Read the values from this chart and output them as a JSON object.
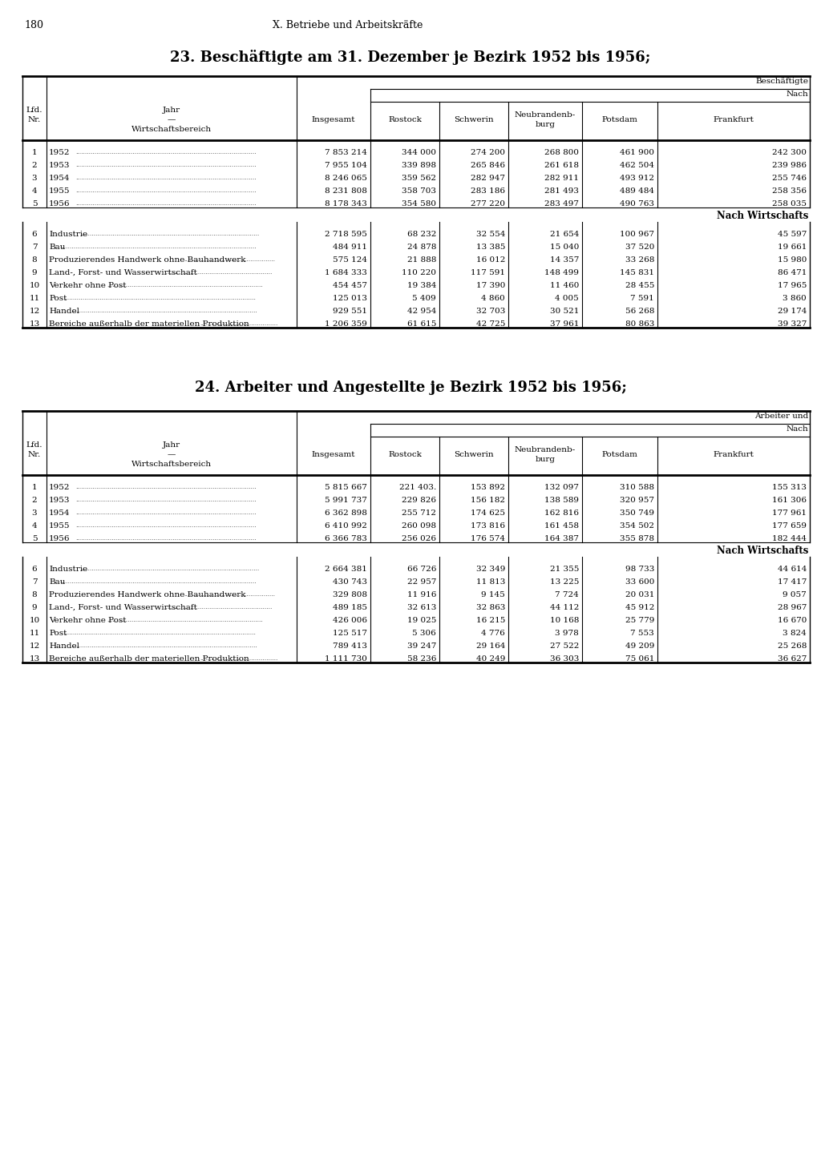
{
  "page_number": "180",
  "header": "X. Betriebe und Arbeitskäfte",
  "background_color": "#ffffff",
  "text_color": "#000000",
  "table1": {
    "title": "23. Beschäftigte am 31. Dezember je Bezirk 1952 bis 1956;",
    "col_header_right": "Beschäftigte",
    "col_header_nach": "Nach",
    "col_header_nachwirts": "Nach Wirtschafts",
    "rows_top": [
      {
        "nr": "1",
        "jahr": "1952",
        "insgesamt": "7 853 214",
        "rostock": "344 000",
        "schwerin": "274 200",
        "neubrand": "268 800",
        "potsdam": "461 900",
        "frankfurt": "242 300"
      },
      {
        "nr": "2",
        "jahr": "1953",
        "insgesamt": "7 955 104",
        "rostock": "339 898",
        "schwerin": "265 846",
        "neubrand": "261 618",
        "potsdam": "462 504",
        "frankfurt": "239 986"
      },
      {
        "nr": "3",
        "jahr": "1954",
        "insgesamt": "8 246 065",
        "rostock": "359 562",
        "schwerin": "282 947",
        "neubrand": "282 911",
        "potsdam": "493 912",
        "frankfurt": "255 746"
      },
      {
        "nr": "4",
        "jahr": "1955",
        "insgesamt": "8 231 808",
        "rostock": "358 703",
        "schwerin": "283 186",
        "neubrand": "281 493",
        "potsdam": "489 484",
        "frankfurt": "258 356"
      },
      {
        "nr": "5",
        "jahr": "1956",
        "insgesamt": "8 178 343",
        "rostock": "354 580",
        "schwerin": "277 220",
        "neubrand": "283 497",
        "potsdam": "490 763",
        "frankfurt": "258 035"
      }
    ],
    "rows_bottom": [
      {
        "nr": "6",
        "label": "Industrie",
        "insgesamt": "2 718 595",
        "rostock": "68 232",
        "schwerin": "32 554",
        "neubrand": "21 654",
        "potsdam": "100 967",
        "frankfurt": "45 597"
      },
      {
        "nr": "7",
        "label": "Bau",
        "insgesamt": "484 911",
        "rostock": "24 878",
        "schwerin": "13 385",
        "neubrand": "15 040",
        "potsdam": "37 520",
        "frankfurt": "19 661"
      },
      {
        "nr": "8",
        "label": "Produzierendes Handwerk ohne Bauhandwerk",
        "insgesamt": "575 124",
        "rostock": "21 888",
        "schwerin": "16 012",
        "neubrand": "14 357",
        "potsdam": "33 268",
        "frankfurt": "15 980"
      },
      {
        "nr": "9",
        "label": "Land-, Forst- und Wasserwirtschaft",
        "insgesamt": "1 684 333",
        "rostock": "110 220",
        "schwerin": "117 591",
        "neubrand": "148 499",
        "potsdam": "145 831",
        "frankfurt": "86 471"
      },
      {
        "nr": "10",
        "label": "Verkehr ohne Post",
        "insgesamt": "454 457",
        "rostock": "19 384",
        "schwerin": "17 390",
        "neubrand": "11 460",
        "potsdam": "28 455",
        "frankfurt": "17 965"
      },
      {
        "nr": "11",
        "label": "Post",
        "insgesamt": "125 013",
        "rostock": "5 409",
        "schwerin": "4 860",
        "neubrand": "4 005",
        "potsdam": "7 591",
        "frankfurt": "3 860"
      },
      {
        "nr": "12",
        "label": "Handel",
        "insgesamt": "929 551",
        "rostock": "42 954",
        "schwerin": "32 703",
        "neubrand": "30 521",
        "potsdam": "56 268",
        "frankfurt": "29 174"
      },
      {
        "nr": "13",
        "label": "Bereiche außerhalb der materiellen Produktion",
        "insgesamt": "1 206 359",
        "rostock": "61 615",
        "schwerin": "42 725",
        "neubrand": "37 961",
        "potsdam": "80 863",
        "frankfurt": "39 327"
      }
    ]
  },
  "table2": {
    "title": "24. Arbeiter und Angestellte je Bezirk 1952 bis 1956;",
    "col_header_right": "Arbeiter und",
    "col_header_nach": "Nach",
    "col_header_nachwirts": "Nach Wirtschafts",
    "rows_top": [
      {
        "nr": "1",
        "jahr": "1952",
        "insgesamt": "5 815 667",
        "rostock": "221 403.",
        "schwerin": "153 892",
        "neubrand": "132 097",
        "potsdam": "310 588",
        "frankfurt": "155 313"
      },
      {
        "nr": "2",
        "jahr": "1953",
        "insgesamt": "5 991 737",
        "rostock": "229 826",
        "schwerin": "156 182",
        "neubrand": "138 589",
        "potsdam": "320 957",
        "frankfurt": "161 306"
      },
      {
        "nr": "3",
        "jahr": "1954",
        "insgesamt": "6 362 898",
        "rostock": "255 712",
        "schwerin": "174 625",
        "neubrand": "162 816",
        "potsdam": "350 749",
        "frankfurt": "177 961"
      },
      {
        "nr": "4",
        "jahr": "1955",
        "insgesamt": "6 410 992",
        "rostock": "260 098",
        "schwerin": "173 816",
        "neubrand": "161 458",
        "potsdam": "354 502",
        "frankfurt": "177 659"
      },
      {
        "nr": "5",
        "jahr": "1956",
        "insgesamt": "6 366 783",
        "rostock": "256 026",
        "schwerin": "176 574",
        "neubrand": "164 387",
        "potsdam": "355 878",
        "frankfurt": "182 444"
      }
    ],
    "rows_bottom": [
      {
        "nr": "6",
        "label": "Industrie",
        "insgesamt": "2 664 381",
        "rostock": "66 726",
        "schwerin": "32 349",
        "neubrand": "21 355",
        "potsdam": "98 733",
        "frankfurt": "44 614"
      },
      {
        "nr": "7",
        "label": "Bau",
        "insgesamt": "430 743",
        "rostock": "22 957",
        "schwerin": "11 813",
        "neubrand": "13 225",
        "potsdam": "33 600",
        "frankfurt": "17 417"
      },
      {
        "nr": "8",
        "label": "Produzierendes Handwerk ohne Bauhandwerk",
        "insgesamt": "329 808",
        "rostock": "11 916",
        "schwerin": "9 145",
        "neubrand": "7 724",
        "potsdam": "20 031",
        "frankfurt": "9 057"
      },
      {
        "nr": "9",
        "label": "Land-, Forst- und Wasserwirtschaft",
        "insgesamt": "489 185",
        "rostock": "32 613",
        "schwerin": "32 863",
        "neubrand": "44 112",
        "potsdam": "45 912",
        "frankfurt": "28 967"
      },
      {
        "nr": "10",
        "label": "Verkehr ohne Post",
        "insgesamt": "426 006",
        "rostock": "19 025",
        "schwerin": "16 215",
        "neubrand": "10 168",
        "potsdam": "25 779",
        "frankfurt": "16 670"
      },
      {
        "nr": "11",
        "label": "Post",
        "insgesamt": "125 517",
        "rostock": "5 306",
        "schwerin": "4 776",
        "neubrand": "3 978",
        "potsdam": "7 553",
        "frankfurt": "3 824"
      },
      {
        "nr": "12",
        "label": "Handel",
        "insgesamt": "789 413",
        "rostock": "39 247",
        "schwerin": "29 164",
        "neubrand": "27 522",
        "potsdam": "49 209",
        "frankfurt": "25 268"
      },
      {
        "nr": "13",
        "label": "Bereiche außerhalb der materiellen Produktion",
        "insgesamt": "1 111 730",
        "rostock": "58 236",
        "schwerin": "40 249",
        "neubrand": "36 303",
        "potsdam": "75 061",
        "frankfurt": "36 627"
      }
    ]
  }
}
